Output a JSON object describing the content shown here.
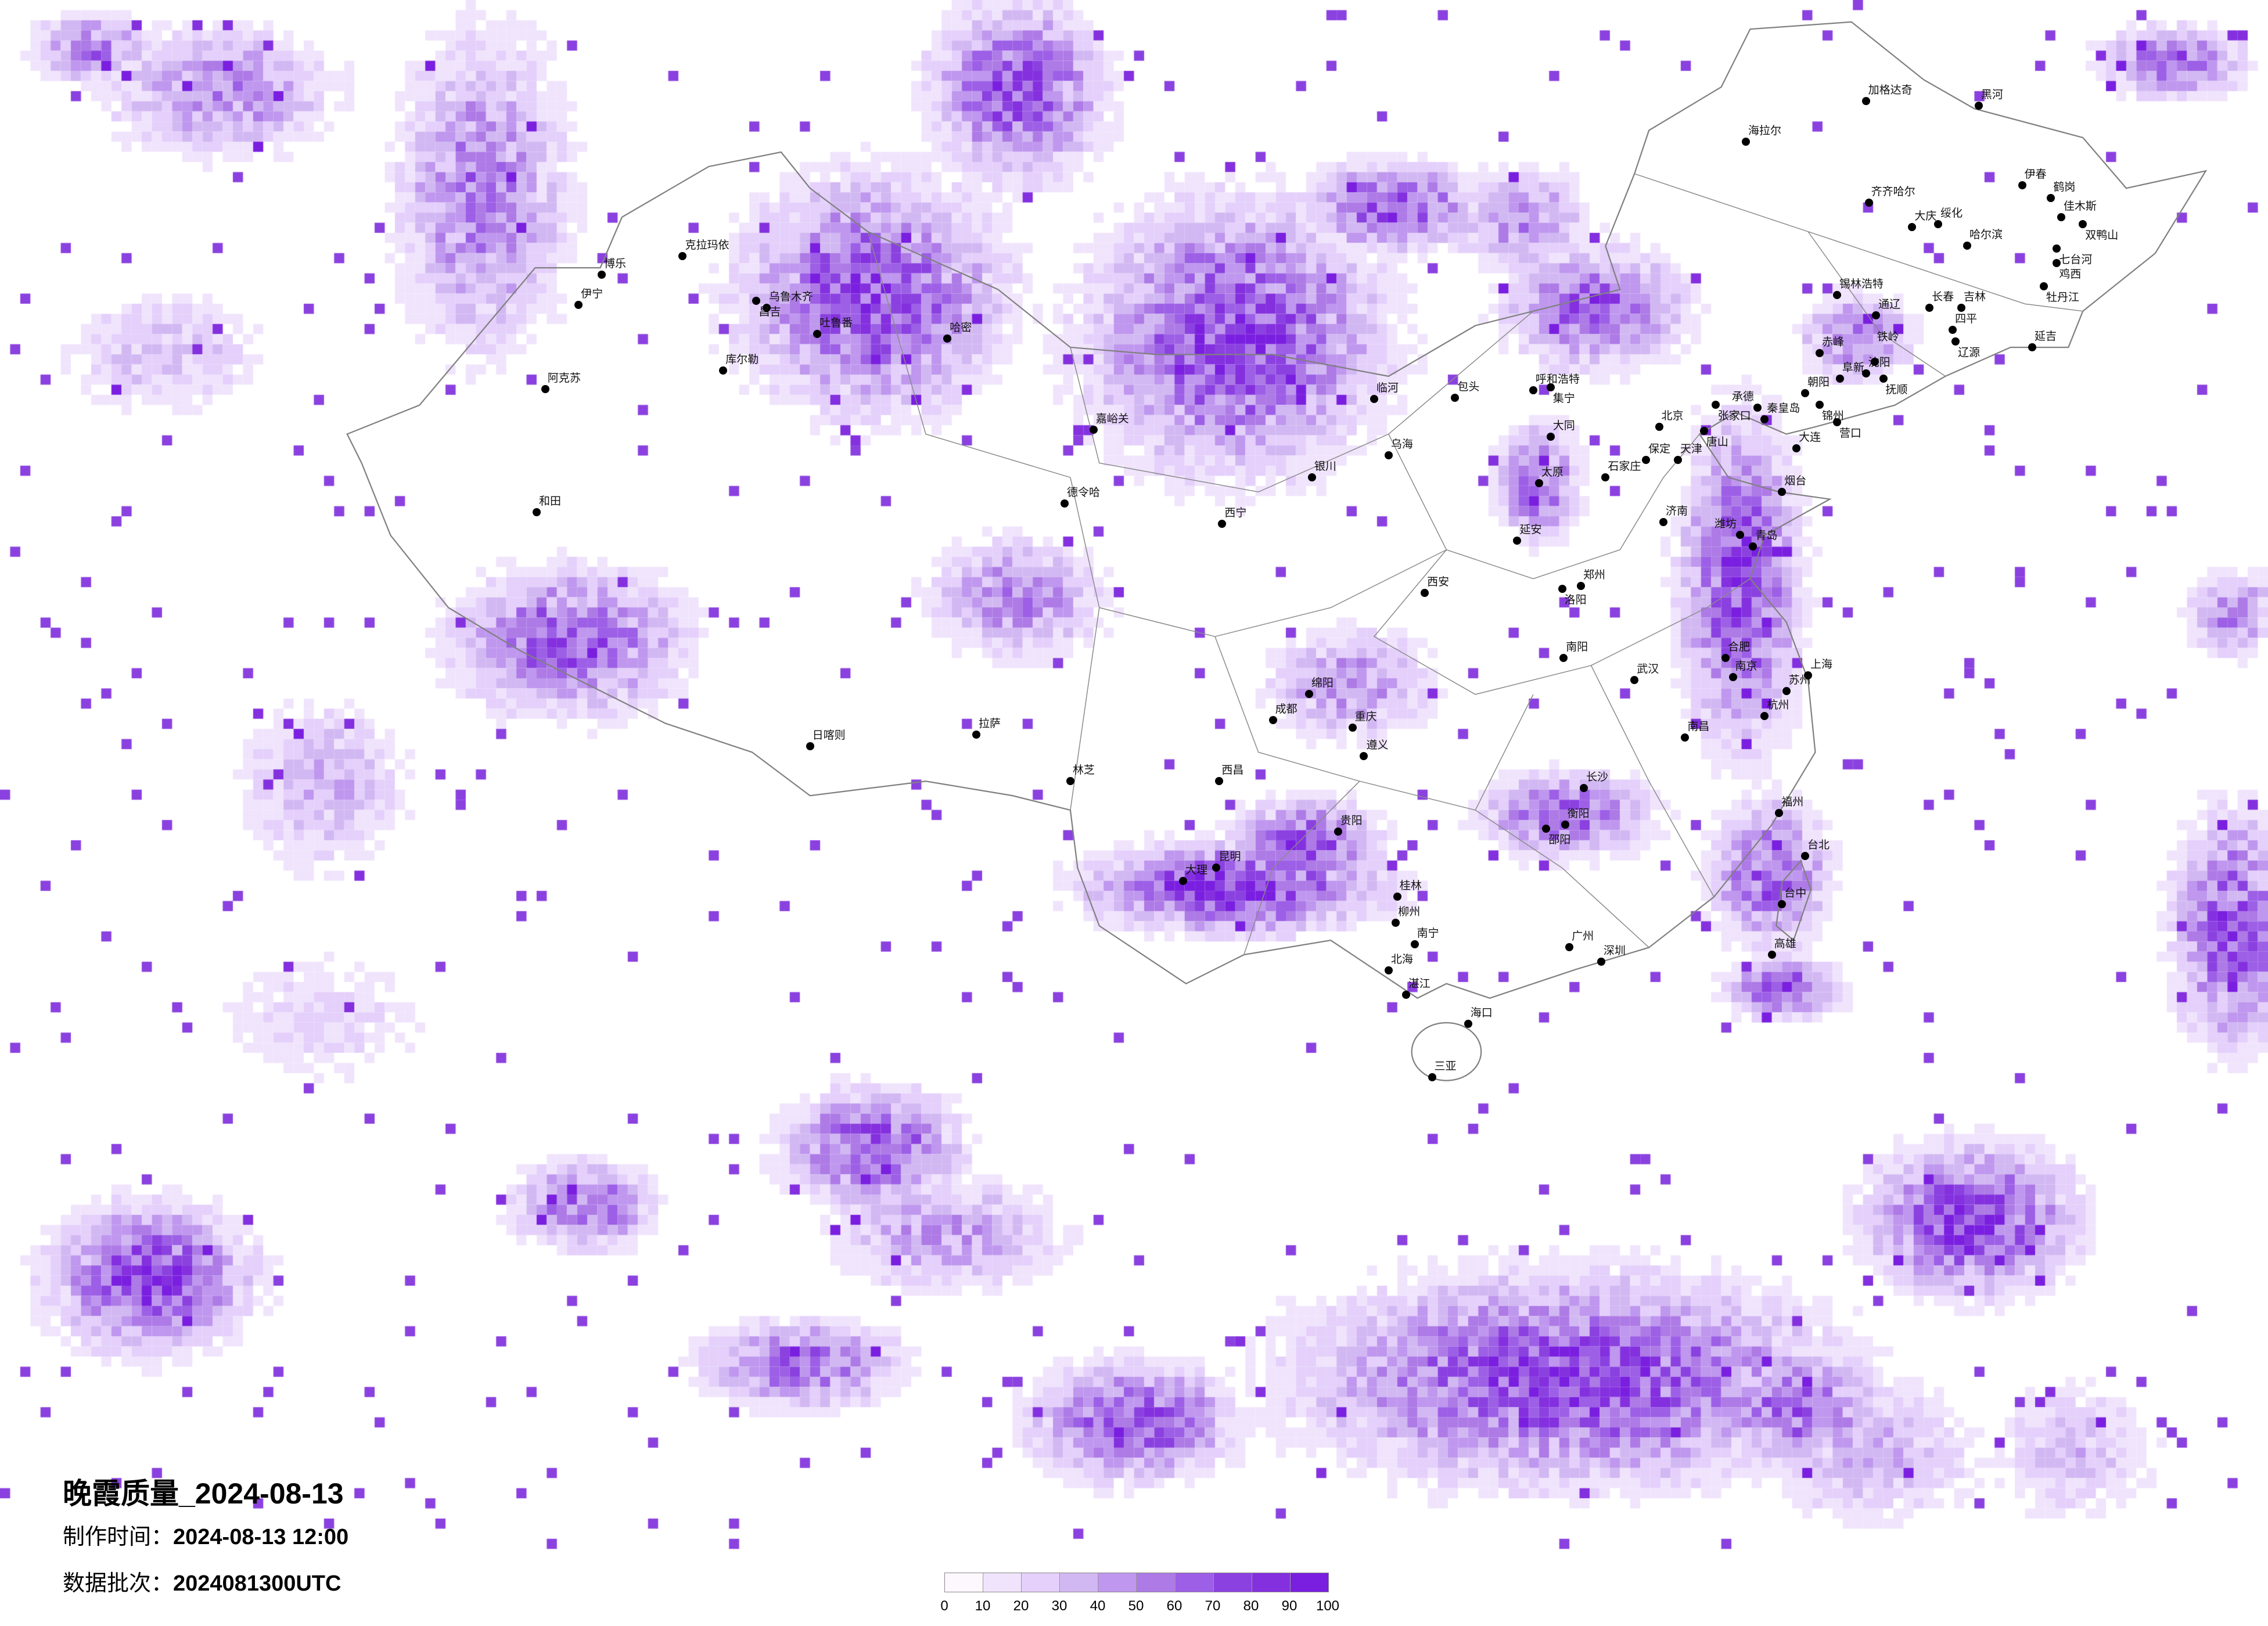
{
  "title": "晚霞质量_2024-08-13",
  "production_time": {
    "label": "制作时间：",
    "value": "2024-08-13 12:00"
  },
  "data_batch": {
    "label": "数据批次：",
    "value": "2024081300UTC"
  },
  "legend": {
    "ticks": [
      "0",
      "10",
      "20",
      "30",
      "40",
      "50",
      "60",
      "70",
      "80",
      "90",
      "100"
    ],
    "colors": [
      "#fdf8fe",
      "#f0e4fc",
      "#e4d0fb",
      "#d2b8f2",
      "#bf97ee",
      "#ad7ae6",
      "#9c5fe6",
      "#8b41e0",
      "#8430df",
      "#7a1fe0"
    ]
  },
  "map": {
    "border_color": "#808080",
    "city_marker_color": "#000000",
    "cities": [
      "黑河",
      "加格达奇",
      "海拉尔",
      "齐齐哈尔",
      "大庆",
      "绥化",
      "哈尔滨",
      "伊春",
      "鹤岗",
      "佳木斯",
      "双鸭山",
      "七台河",
      "鸡西",
      "牡丹江",
      "长春",
      "吉林",
      "四平",
      "辽源",
      "延吉",
      "通辽",
      "锡林浩特",
      "赤峰",
      "沈阳",
      "抚顺",
      "铁岭",
      "阜新",
      "朝阳",
      "锦州",
      "营口",
      "大连",
      "秦皇岛",
      "承德",
      "张家口",
      "北京",
      "天津",
      "唐山",
      "保定",
      "石家庄",
      "济南",
      "青岛",
      "烟台",
      "潍坊",
      "呼和浩特",
      "包头",
      "集宁",
      "大同",
      "太原",
      "临河",
      "乌海",
      "银川",
      "延安",
      "西安",
      "郑州",
      "洛阳",
      "南阳",
      "合肥",
      "南京",
      "上海",
      "苏州",
      "杭州",
      "武汉",
      "长沙",
      "南昌",
      "福州",
      "台北",
      "台中",
      "高雄",
      "广州",
      "深圳",
      "南宁",
      "海口",
      "三亚",
      "昆明",
      "贵阳",
      "重庆",
      "成都",
      "绵阳",
      "西昌",
      "大理",
      "拉萨",
      "日喀则",
      "林芝",
      "西宁",
      "德令哈",
      "嘉峪关",
      "哈密",
      "吐鲁番",
      "乌鲁木齐",
      "昌吉",
      "克拉玛依",
      "博乐",
      "伊宁",
      "库尔勒",
      "阿克苏",
      "和田",
      "桂林",
      "柳州",
      "北海",
      "湛江",
      "衡阳",
      "邵阳",
      "遵义"
    ]
  }
}
